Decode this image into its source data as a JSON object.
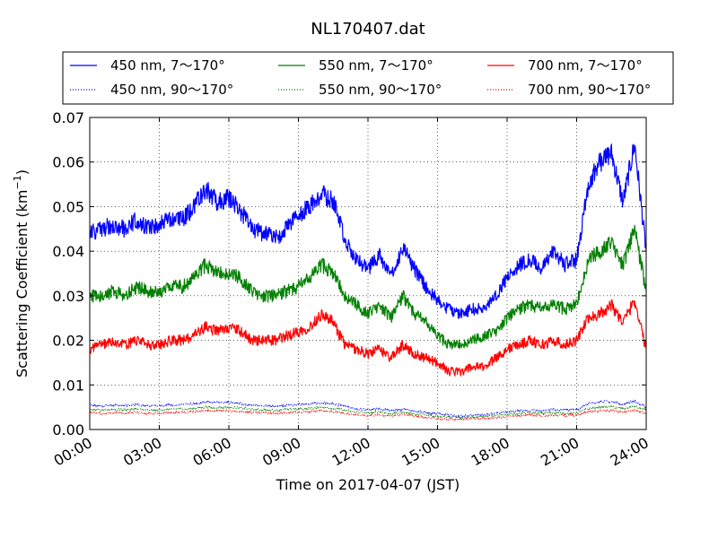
{
  "chart_data": {
    "type": "line",
    "title": "NL170407.dat",
    "xlabel": "Time on 2017-04-07 (JST)",
    "ylabel": "Scattering Coefficient (km",
    "ylabel_sup": "−1",
    "ylabel_close": ")",
    "xlim": [
      0,
      24
    ],
    "ylim": [
      0,
      0.07
    ],
    "grid": true,
    "legend_position": "top",
    "x_ticks": [
      0,
      3,
      6,
      9,
      12,
      15,
      18,
      21,
      24
    ],
    "x_tick_labels": [
      "00:00",
      "03:00",
      "06:00",
      "09:00",
      "12:00",
      "15:00",
      "18:00",
      "21:00",
      "24:00"
    ],
    "y_ticks": [
      0,
      0.01,
      0.02,
      0.03,
      0.04,
      0.05,
      0.06,
      0.07
    ],
    "y_tick_labels": [
      "0.00",
      "0.01",
      "0.02",
      "0.03",
      "0.04",
      "0.05",
      "0.06",
      "0.07"
    ],
    "x": [
      0.0,
      0.5,
      1.0,
      1.5,
      2.0,
      2.5,
      3.0,
      3.5,
      4.0,
      4.5,
      5.0,
      5.5,
      6.0,
      6.5,
      7.0,
      7.5,
      8.0,
      8.5,
      9.0,
      9.5,
      10.0,
      10.5,
      11.0,
      11.5,
      12.0,
      12.5,
      13.0,
      13.5,
      14.0,
      14.5,
      15.0,
      15.5,
      16.0,
      16.5,
      17.0,
      17.5,
      18.0,
      18.5,
      19.0,
      19.5,
      20.0,
      20.5,
      21.0,
      21.5,
      22.0,
      22.5,
      23.0,
      23.5,
      24.0
    ],
    "series": [
      {
        "name": "450 nm, 7～170°",
        "color": "#0000ff",
        "style": "solid",
        "values": [
          0.044,
          0.045,
          0.046,
          0.045,
          0.047,
          0.045,
          0.046,
          0.047,
          0.047,
          0.05,
          0.054,
          0.051,
          0.052,
          0.049,
          0.045,
          0.044,
          0.043,
          0.045,
          0.048,
          0.05,
          0.053,
          0.051,
          0.043,
          0.038,
          0.036,
          0.039,
          0.034,
          0.041,
          0.036,
          0.032,
          0.029,
          0.027,
          0.026,
          0.027,
          0.027,
          0.03,
          0.034,
          0.037,
          0.038,
          0.036,
          0.04,
          0.037,
          0.038,
          0.055,
          0.06,
          0.062,
          0.051,
          0.064,
          0.04
        ]
      },
      {
        "name": "450 nm, 90～170°",
        "color": "#0000ff",
        "style": "dotted",
        "values": [
          0.0055,
          0.0052,
          0.0055,
          0.0053,
          0.0056,
          0.0052,
          0.0054,
          0.0055,
          0.0056,
          0.0058,
          0.0062,
          0.006,
          0.0061,
          0.0058,
          0.0055,
          0.0053,
          0.0052,
          0.0054,
          0.0056,
          0.0058,
          0.006,
          0.0058,
          0.0052,
          0.0046,
          0.0044,
          0.0046,
          0.0042,
          0.0046,
          0.0042,
          0.0038,
          0.0035,
          0.0032,
          0.0031,
          0.0032,
          0.0033,
          0.0036,
          0.004,
          0.0042,
          0.0043,
          0.0042,
          0.0045,
          0.0043,
          0.0044,
          0.0058,
          0.0062,
          0.0063,
          0.0056,
          0.0064,
          0.005
        ]
      },
      {
        "name": "550 nm, 7～170°",
        "color": "#008000",
        "style": "solid",
        "values": [
          0.03,
          0.03,
          0.031,
          0.03,
          0.032,
          0.031,
          0.031,
          0.032,
          0.032,
          0.034,
          0.037,
          0.035,
          0.035,
          0.034,
          0.031,
          0.03,
          0.03,
          0.031,
          0.032,
          0.034,
          0.037,
          0.035,
          0.03,
          0.028,
          0.026,
          0.028,
          0.025,
          0.03,
          0.026,
          0.024,
          0.021,
          0.019,
          0.019,
          0.02,
          0.021,
          0.022,
          0.025,
          0.027,
          0.028,
          0.027,
          0.028,
          0.027,
          0.028,
          0.038,
          0.04,
          0.042,
          0.037,
          0.045,
          0.031
        ]
      },
      {
        "name": "550 nm, 90～170°",
        "color": "#008000",
        "style": "dotted",
        "values": [
          0.0045,
          0.0043,
          0.0045,
          0.0044,
          0.0046,
          0.0043,
          0.0044,
          0.0045,
          0.0046,
          0.0047,
          0.005,
          0.0049,
          0.005,
          0.0048,
          0.0045,
          0.0044,
          0.0043,
          0.0045,
          0.0046,
          0.0047,
          0.005,
          0.0048,
          0.0043,
          0.0039,
          0.0037,
          0.0039,
          0.0035,
          0.0039,
          0.0035,
          0.0032,
          0.003,
          0.0028,
          0.0027,
          0.0028,
          0.0029,
          0.0031,
          0.0034,
          0.0036,
          0.0037,
          0.0036,
          0.0038,
          0.0036,
          0.0037,
          0.0047,
          0.005,
          0.0051,
          0.0046,
          0.0052,
          0.0042
        ]
      },
      {
        "name": "700 nm, 7～170°",
        "color": "#ff0000",
        "style": "solid",
        "values": [
          0.018,
          0.019,
          0.02,
          0.019,
          0.02,
          0.019,
          0.019,
          0.02,
          0.02,
          0.021,
          0.023,
          0.022,
          0.023,
          0.022,
          0.02,
          0.02,
          0.02,
          0.021,
          0.022,
          0.023,
          0.026,
          0.024,
          0.019,
          0.018,
          0.017,
          0.018,
          0.016,
          0.019,
          0.017,
          0.016,
          0.015,
          0.013,
          0.013,
          0.014,
          0.014,
          0.016,
          0.018,
          0.019,
          0.02,
          0.019,
          0.02,
          0.019,
          0.02,
          0.025,
          0.026,
          0.028,
          0.024,
          0.029,
          0.018
        ]
      },
      {
        "name": "700 nm, 90～170°",
        "color": "#ff0000",
        "style": "dotted",
        "values": [
          0.0038,
          0.0036,
          0.0038,
          0.0037,
          0.0039,
          0.0036,
          0.0037,
          0.0038,
          0.0039,
          0.004,
          0.0042,
          0.0041,
          0.0042,
          0.004,
          0.0038,
          0.0037,
          0.0036,
          0.0038,
          0.0039,
          0.004,
          0.0042,
          0.004,
          0.0036,
          0.0033,
          0.0031,
          0.0033,
          0.003,
          0.0033,
          0.003,
          0.0027,
          0.0025,
          0.0023,
          0.0023,
          0.0024,
          0.0025,
          0.0027,
          0.0029,
          0.0031,
          0.0032,
          0.0031,
          0.0033,
          0.0031,
          0.0032,
          0.004,
          0.0042,
          0.0043,
          0.0039,
          0.0044,
          0.0036
        ]
      }
    ]
  }
}
